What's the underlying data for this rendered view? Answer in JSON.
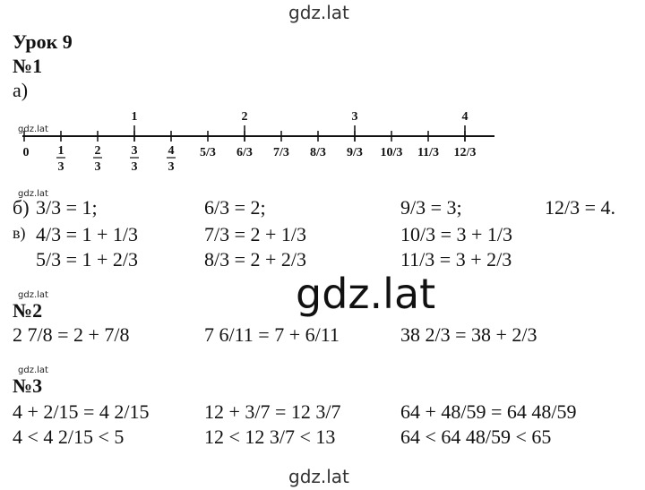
{
  "watermark_top": "gdz.lat",
  "watermark_center": "gdz.lat",
  "watermark_bottom": "gdz.lat",
  "small_watermarks": [
    "gdz.lat",
    "gdz.lat",
    "gdz.lat",
    "gdz.lat"
  ],
  "title": "Урок 9",
  "task1": {
    "heading": "№1",
    "part_a": "а)",
    "number_line": {
      "top_labels": [
        null,
        null,
        null,
        "1",
        null,
        null,
        "2",
        null,
        null,
        "3",
        null,
        null,
        "4"
      ],
      "bottom_labels": [
        "0",
        {
          "num": "1",
          "den": "3"
        },
        {
          "num": "2",
          "den": "3"
        },
        {
          "num": "3",
          "den": "3"
        },
        {
          "num": "4",
          "den": "3"
        },
        "5/3",
        "6/3",
        "7/3",
        "8/3",
        "9/3",
        "10/3",
        "11/3",
        "12/3"
      ]
    },
    "part_b": {
      "label": "б)",
      "cells": [
        "3/3 = 1;",
        "6/3 = 2;",
        "9/3 = 3;",
        "12/3 = 4."
      ]
    },
    "part_v": {
      "label": "в)",
      "rows": [
        [
          "4/3 = 1 + 1/3",
          "7/3 = 2 + 1/3",
          "10/3 = 3 + 1/3"
        ],
        [
          "5/3 = 1 + 2/3",
          "8/3 = 2 + 2/3",
          "11/3 = 3 + 2/3"
        ]
      ]
    }
  },
  "task2": {
    "heading": "№2",
    "rows": [
      [
        "2 7/8 = 2 + 7/8",
        "7 6/11 = 7 + 6/11",
        "38 2/3 = 38 + 2/3"
      ]
    ]
  },
  "task3": {
    "heading": "№3",
    "rows": [
      [
        "4 + 2/15 = 4 2/15",
        "12 + 3/7 = 12 3/7",
        "64 + 48/59 = 64 48/59"
      ],
      [
        "4 < 4 2/15 < 5",
        "12 < 12 3/7 < 13",
        "64 < 64 48/59 < 65"
      ]
    ]
  }
}
